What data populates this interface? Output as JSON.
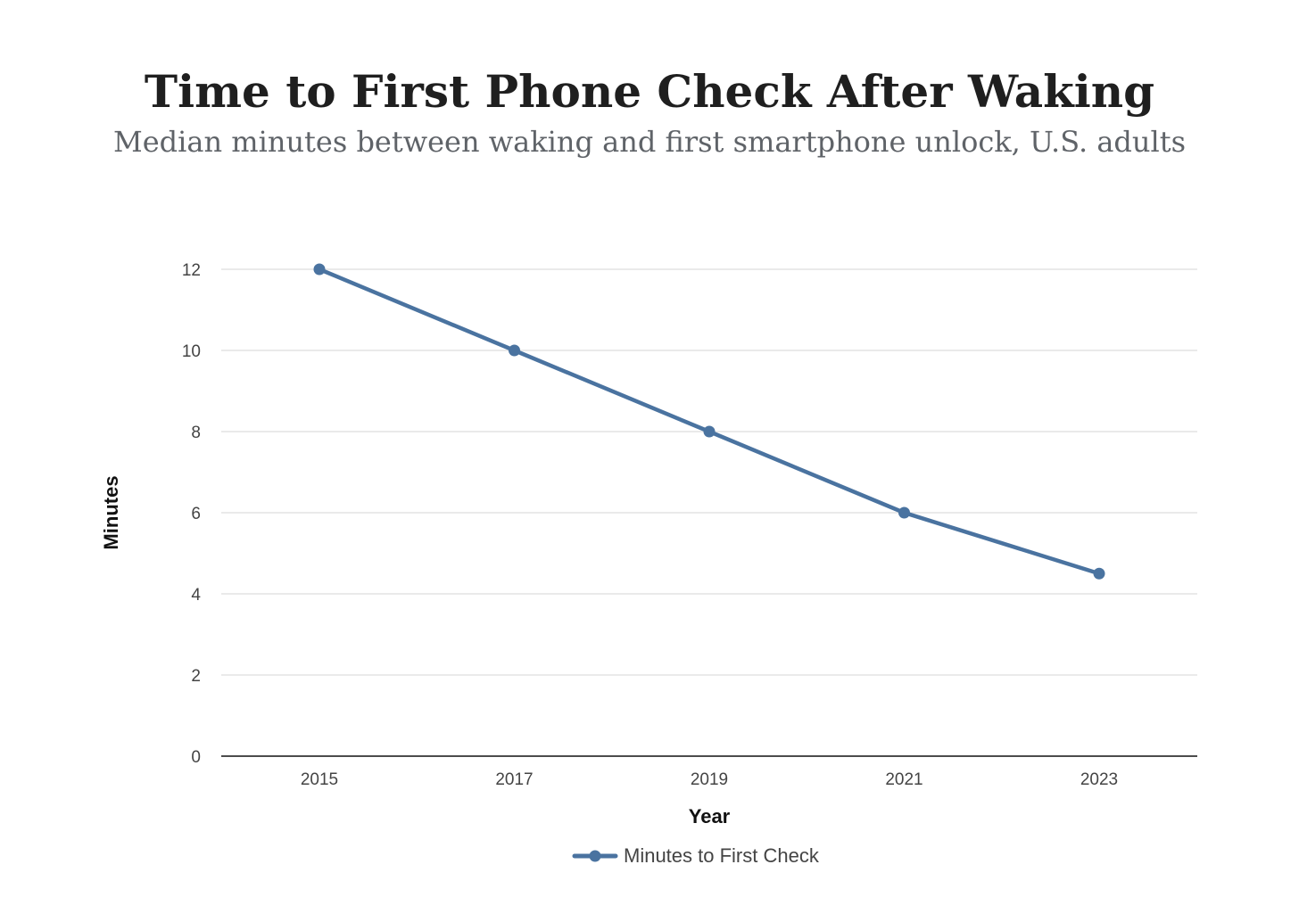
{
  "chart_data": {
    "type": "line",
    "title": "Time to First Phone Check After Waking",
    "subtitle": "Median minutes between waking and first smartphone unlock, U.S. adults",
    "xlabel": "Year",
    "ylabel": "Minutes",
    "categories": [
      "2015",
      "2017",
      "2019",
      "2021",
      "2023"
    ],
    "series": [
      {
        "name": "Minutes to First Check",
        "values": [
          12,
          10,
          8,
          6,
          4.5
        ],
        "color": "#4a73a0"
      }
    ],
    "ylim": [
      0,
      12
    ],
    "yticks": [
      0,
      2,
      4,
      6,
      8,
      10,
      12
    ],
    "grid": true,
    "legend_position": "bottom-center"
  }
}
